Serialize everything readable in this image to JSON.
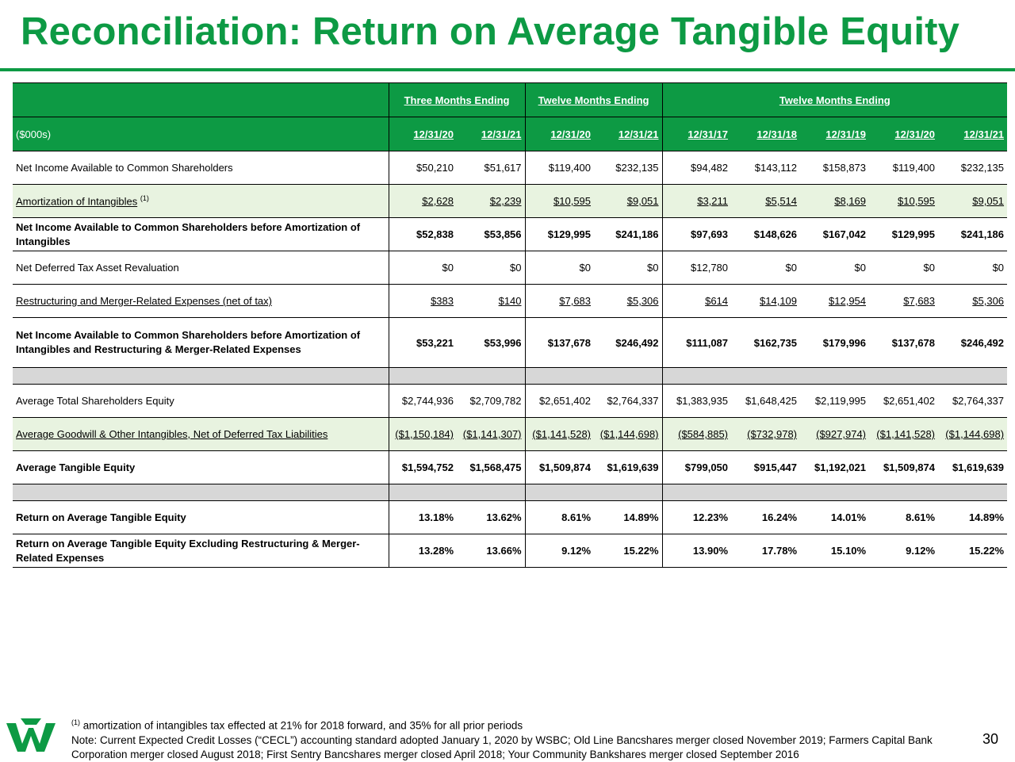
{
  "title": "Reconciliation: Return on Average Tangible Equity",
  "header": {
    "units_label": "($000s)",
    "groups": [
      "Three Months Ending",
      "Twelve Months Ending",
      "Twelve Months Ending"
    ],
    "periods": [
      "12/31/20",
      "12/31/21",
      "12/31/20",
      "12/31/21",
      "12/31/17",
      "12/31/18",
      "12/31/19",
      "12/31/20",
      "12/31/21"
    ]
  },
  "rows": {
    "net_income": {
      "label": "Net Income Available to Common Shareholders",
      "values": [
        "$50,210",
        "$51,617",
        "$119,400",
        "$232,135",
        "$94,482",
        "$143,112",
        "$158,873",
        "$119,400",
        "$232,135"
      ]
    },
    "amortization": {
      "label": "Amortization of Intangibles",
      "footnote_mark": "(1)",
      "values": [
        "$2,628",
        "$2,239",
        "$10,595",
        "$9,051",
        "$3,211",
        "$5,514",
        "$8,169",
        "$10,595",
        "$9,051"
      ]
    },
    "net_income_before_amort": {
      "label": "Net Income Available to Common Shareholders before Amortization of Intangibles",
      "values": [
        "$52,838",
        "$53,856",
        "$129,995",
        "$241,186",
        "$97,693",
        "$148,626",
        "$167,042",
        "$129,995",
        "$241,186"
      ]
    },
    "dta_revaluation": {
      "label": "Net Deferred Tax Asset Revaluation",
      "values": [
        "$0",
        "$0",
        "$0",
        "$0",
        "$12,780",
        "$0",
        "$0",
        "$0",
        "$0"
      ]
    },
    "restructuring": {
      "label": "Restructuring and Merger-Related Expenses (net of tax)",
      "values": [
        "$383",
        "$140",
        "$7,683",
        "$5,306",
        "$614",
        "$14,109",
        "$12,954",
        "$7,683",
        "$5,306"
      ]
    },
    "net_income_before_amort_restr": {
      "label": "Net Income Available to Common Shareholders before Amortization of Intangibles and Restructuring & Merger-Related Expenses",
      "values": [
        "$53,221",
        "$53,996",
        "$137,678",
        "$246,492",
        "$111,087",
        "$162,735",
        "$179,996",
        "$137,678",
        "$246,492"
      ]
    },
    "avg_total_equity": {
      "label": "Average Total Shareholders Equity",
      "values": [
        "$2,744,936",
        "$2,709,782",
        "$2,651,402",
        "$2,764,337",
        "$1,383,935",
        "$1,648,425",
        "$2,119,995",
        "$2,651,402",
        "$2,764,337"
      ]
    },
    "avg_goodwill": {
      "label": "Average Goodwill & Other Intangibles, Net of Deferred Tax Liabilities",
      "values": [
        "($1,150,184)",
        "($1,141,307)",
        "($1,141,528)",
        "($1,144,698)",
        "($584,885)",
        "($732,978)",
        "($927,974)",
        "($1,141,528)",
        "($1,144,698)"
      ]
    },
    "avg_tangible_equity": {
      "label": "Average Tangible Equity",
      "values": [
        "$1,594,752",
        "$1,568,475",
        "$1,509,874",
        "$1,619,639",
        "$799,050",
        "$915,447",
        "$1,192,021",
        "$1,509,874",
        "$1,619,639"
      ]
    },
    "rote": {
      "label": "Return on Average Tangible Equity",
      "values": [
        "13.18%",
        "13.62%",
        "8.61%",
        "14.89%",
        "12.23%",
        "16.24%",
        "14.01%",
        "8.61%",
        "14.89%"
      ]
    },
    "rote_ex": {
      "label": "Return on Average Tangible Equity Excluding Restructuring & Merger-Related Expenses",
      "values": [
        "13.28%",
        "13.66%",
        "9.12%",
        "15.22%",
        "13.90%",
        "17.78%",
        "15.10%",
        "9.12%",
        "15.22%"
      ]
    }
  },
  "footer": {
    "footnote_mark": "(1)",
    "footnote": "amortization of intangibles tax effected at 21% for 2018 forward, and 35% for all prior periods",
    "note": "Note: Current Expected Credit Losses (“CECL”) accounting standard adopted January 1, 2020 by WSBC; Old Line Bancshares merger closed November 2019; Farmers Capital Bank Corporation merger closed August 2018; First Sentry Bancshares merger closed April 2018; Your Community Bankshares merger closed September 2016",
    "page_number": "30"
  },
  "colors": {
    "brand_green": "#0d9a44",
    "row_tint": "#e8f3e0",
    "spacer_gray": "#d7d7d7"
  },
  "icons": {
    "logo": "wesbanco-w-logo-icon"
  }
}
